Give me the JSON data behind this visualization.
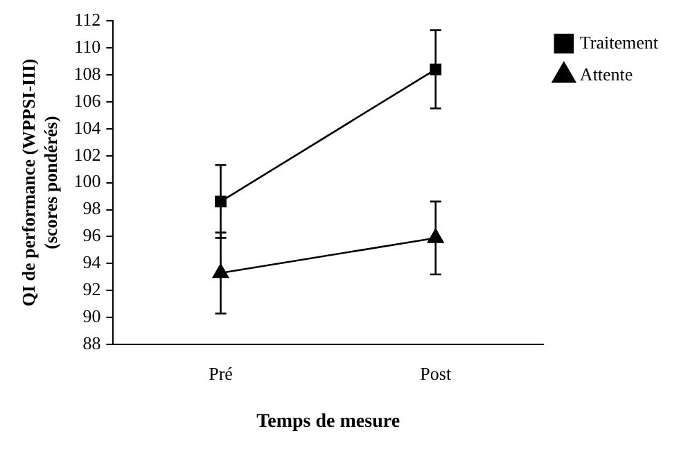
{
  "chart_data": {
    "type": "line",
    "xlabel": "Temps de mesure",
    "ylabel": "QI de performance (WPPSI-III) (scores pondérés)",
    "categories": [
      "Pré",
      "Post"
    ],
    "series": [
      {
        "name": "Traitement",
        "color": "#000000",
        "marker": "square",
        "values": [
          98.6,
          108.4
        ],
        "errors": [
          2.7,
          2.9
        ]
      },
      {
        "name": "Attente",
        "color": "#000000",
        "marker": "triangle",
        "values": [
          93.3,
          95.9
        ],
        "errors": [
          3.0,
          2.7
        ]
      }
    ],
    "ylim": [
      88,
      112
    ],
    "yticks": [
      88,
      90,
      92,
      94,
      96,
      98,
      100,
      102,
      104,
      106,
      108,
      110,
      112
    ],
    "grid": false,
    "legend": "top right",
    "line_style": "solid"
  }
}
